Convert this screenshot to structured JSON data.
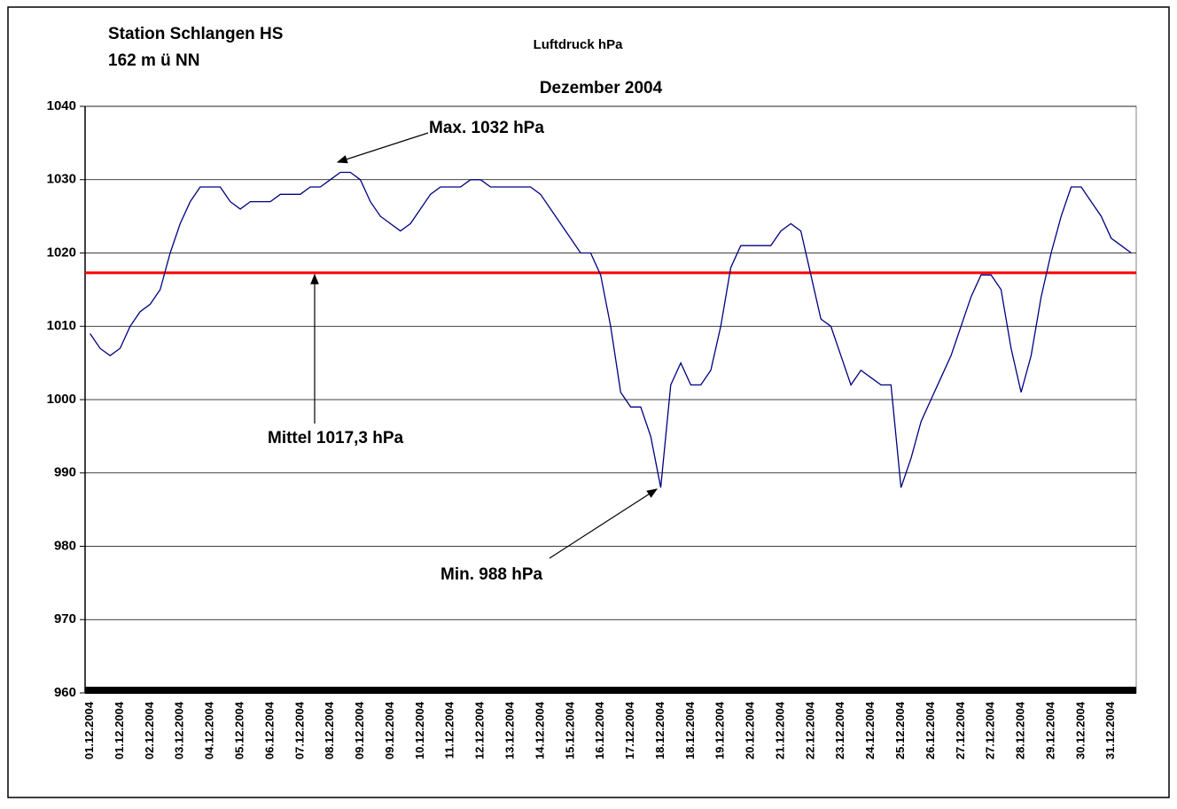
{
  "chart_data": {
    "type": "line",
    "title": "Luftdruck hPa",
    "subtitle": "Dezember 2004",
    "station": [
      "Station Schlangen HS",
      "162 m ü NN"
    ],
    "annotations": [
      "Max. 1032 hPa",
      "Mittel 1017,3 hPa",
      "Min. 988 hPa"
    ],
    "reference_line": {
      "value": 1017.3,
      "color": "#ff0000"
    },
    "categories": [
      "01.12.2004",
      null,
      null,
      "01.12.2004",
      null,
      null,
      "02.12.2004",
      null,
      null,
      "03.12.2004",
      null,
      null,
      "04.12.2004",
      null,
      null,
      "05.12.2004",
      null,
      null,
      "06.12.2004",
      null,
      null,
      "07.12.2004",
      null,
      null,
      "08.12.2004",
      null,
      null,
      "09.12.2004",
      null,
      null,
      "09.12.2004",
      null,
      null,
      "10.12.2004",
      null,
      null,
      "11.12.2004",
      null,
      null,
      "12.12.2004",
      null,
      null,
      "13.12.2004",
      null,
      null,
      "14.12.2004",
      null,
      null,
      "15.12.2004",
      null,
      null,
      "16.12.2004",
      null,
      null,
      "17.12.2004",
      null,
      null,
      "18.12.2004",
      null,
      null,
      "18.12.2004",
      null,
      null,
      "19.12.2004",
      null,
      null,
      "20.12.2004",
      null,
      null,
      "21.12.2004",
      null,
      null,
      "22.12.2004",
      null,
      null,
      "23.12.2004",
      null,
      null,
      "24.12.2004",
      null,
      null,
      "25.12.2004",
      null,
      null,
      "26.12.2004",
      null,
      null,
      "27.12.2004",
      null,
      null,
      "27.12.2004",
      null,
      null,
      "28.12.2004",
      null,
      null,
      "29.12.2004",
      null,
      null,
      "30.12.2004",
      null,
      null,
      "31.12.2004",
      null,
      null
    ],
    "series": [
      {
        "name": "Luftdruck",
        "color": "#000080",
        "values": [
          1009,
          1007,
          1006,
          1007,
          1010,
          1012,
          1013,
          1015,
          1020,
          1024,
          1027,
          1029,
          1029,
          1029,
          1027,
          1026,
          1027,
          1027,
          1027,
          1028,
          1028,
          1028,
          1029,
          1029,
          1030,
          1031,
          1031,
          1030,
          1027,
          1025,
          1024,
          1023,
          1024,
          1026,
          1028,
          1029,
          1029,
          1029,
          1030,
          1030,
          1029,
          1029,
          1029,
          1029,
          1029,
          1028,
          1026,
          1024,
          1022,
          1020,
          1020,
          1017,
          1010,
          1001,
          999,
          999,
          995,
          988,
          1002,
          1005,
          1002,
          1002,
          1004,
          1010,
          1018,
          1021,
          1021,
          1021,
          1021,
          1023,
          1024,
          1023,
          1017,
          1011,
          1010,
          1006,
          1002,
          1004,
          1003,
          1002,
          1002,
          988,
          992,
          997,
          1000,
          1003,
          1006,
          1010,
          1014,
          1017,
          1017,
          1015,
          1007,
          1001,
          1006,
          1014,
          1020,
          1025,
          1029,
          1029,
          1027,
          1025,
          1022,
          1021,
          1020
        ]
      }
    ],
    "ylim": [
      960,
      1040
    ],
    "yticks": [
      960,
      970,
      980,
      990,
      1000,
      1010,
      1020,
      1030,
      1040
    ],
    "grid": true
  }
}
